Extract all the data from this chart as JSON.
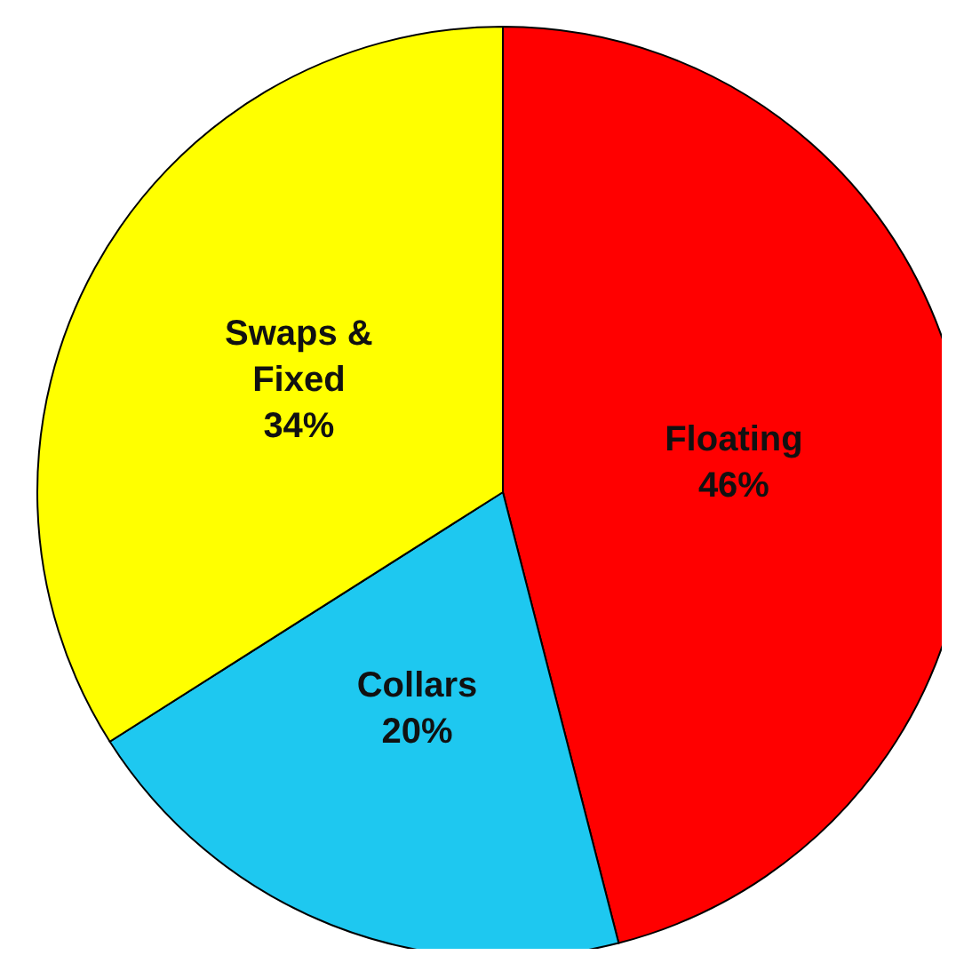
{
  "chart_data": {
    "type": "pie",
    "categories": [
      "Floating",
      "Collars",
      "Swaps & Fixed"
    ],
    "values": [
      46,
      20,
      34
    ],
    "colors": [
      "#ff0000",
      "#1ec8f0",
      "#ffff00"
    ],
    "value_labels": [
      "46%",
      "20%",
      "34%"
    ],
    "legend": false
  }
}
